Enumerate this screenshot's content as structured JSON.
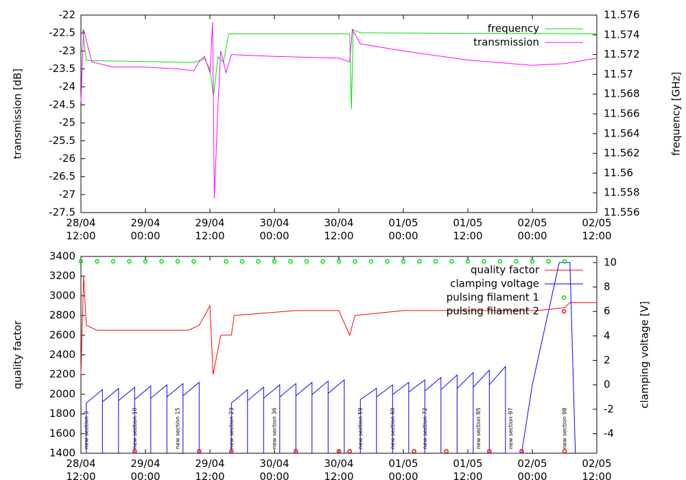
{
  "chart_data": [
    {
      "type": "line",
      "ylabel": "transmission [dB]",
      "y2label": "frequency [GHz]",
      "xlim": [
        "28/04 12:00",
        "02/05 12:00"
      ],
      "xticks": [
        {
          "value": "28/04 12:00",
          "label": "28/04\n12:00"
        },
        {
          "value": "29/04 00:00",
          "label": "29/04\n00:00"
        },
        {
          "value": "29/04 12:00",
          "label": "29/04\n12:00"
        },
        {
          "value": "30/04 00:00",
          "label": "30/04\n00:00"
        },
        {
          "value": "30/04 12:00",
          "label": "30/04\n12:00"
        },
        {
          "value": "01/05 00:00",
          "label": "01/05\n00:00"
        },
        {
          "value": "01/05 12:00",
          "label": "01/05\n12:00"
        },
        {
          "value": "02/05 00:00",
          "label": "02/05\n00:00"
        },
        {
          "value": "02/05 12:00",
          "label": "02/05\n12:00"
        }
      ],
      "ylim": [
        -27.5,
        -22
      ],
      "yticks": [
        -27.5,
        -27,
        -26.5,
        -26,
        -25.5,
        -25,
        -24.5,
        -24,
        -23.5,
        -23,
        -22.5,
        -22
      ],
      "y2lim": [
        11.556,
        11.576
      ],
      "y2ticks": [
        11.556,
        11.558,
        11.56,
        11.562,
        11.564,
        11.566,
        11.568,
        11.57,
        11.572,
        11.574,
        11.576
      ],
      "legend": "top right",
      "grid": false,
      "series": [
        {
          "name": "frequency",
          "color": "#00e000",
          "axis": "y2",
          "x": [
            "28/04 12:20",
            "28/04 13:00",
            "29/04 09:00",
            "29/04 11:00",
            "29/04 12:00",
            "29/04 12:40",
            "29/04 13:30",
            "29/04 14:30",
            "29/04 15:30",
            "30/04 14:00",
            "30/04 14:20",
            "30/04 14:40",
            "30/04 16:00",
            "02/05 12:00"
          ],
          "values": [
            11.5745,
            11.5714,
            11.5712,
            11.5716,
            11.5705,
            11.5678,
            11.5718,
            11.5712,
            11.5741,
            11.5741,
            11.5665,
            11.5745,
            11.5742,
            11.5741
          ]
        },
        {
          "name": "transmission",
          "color": "#ff00ff",
          "x": [
            "28/04 12:00",
            "28/04 12:30",
            "28/04 14:00",
            "28/04 18:00",
            "29/04 00:00",
            "29/04 06:00",
            "29/04 09:00",
            "29/04 10:00",
            "29/04 11:00",
            "29/04 12:00",
            "29/04 12:30",
            "29/04 12:50",
            "29/04 13:30",
            "29/04 14:00",
            "29/04 15:00",
            "29/04 16:00",
            "30/04 00:00",
            "30/04 12:00",
            "30/04 14:00",
            "30/04 14:30",
            "30/04 16:00",
            "01/05 00:00",
            "01/05 12:00",
            "02/05 00:00",
            "02/05 06:00",
            "02/05 12:00"
          ],
          "values": [
            -24.4,
            -22.4,
            -23.3,
            -23.45,
            -23.45,
            -23.5,
            -23.55,
            -23.3,
            -23.15,
            -23.6,
            -22.2,
            -27.1,
            -24.5,
            -23.0,
            -23.6,
            -23.1,
            -23.15,
            -23.2,
            -23.3,
            -22.4,
            -22.8,
            -23.0,
            -23.25,
            -23.4,
            -23.35,
            -23.2
          ]
        }
      ]
    },
    {
      "type": "line",
      "ylabel": "quality factor",
      "y2label": "clamping voltage [V]",
      "xlim": [
        "28/04 12:00",
        "02/05 12:00"
      ],
      "xticks": [
        {
          "value": "28/04 12:00",
          "label": "28/04\n12:00"
        },
        {
          "value": "29/04 00:00",
          "label": "29/04\n00:00"
        },
        {
          "value": "29/04 12:00",
          "label": "29/04\n12:00"
        },
        {
          "value": "30/04 00:00",
          "label": "30/04\n00:00"
        },
        {
          "value": "30/04 12:00",
          "label": "30/04\n12:00"
        },
        {
          "value": "01/05 00:00",
          "label": "01/05\n00:00"
        },
        {
          "value": "01/05 12:00",
          "label": "01/05\n12:00"
        },
        {
          "value": "02/05 00:00",
          "label": "02/05\n00:00"
        },
        {
          "value": "02/05 12:00",
          "label": "02/05\n12:00"
        }
      ],
      "ylim": [
        1400,
        3400
      ],
      "yticks": [
        1400,
        1600,
        1800,
        2000,
        2200,
        2400,
        2600,
        2800,
        3000,
        3200,
        3400
      ],
      "y2lim": [
        -5.6,
        10.5
      ],
      "y2ticks": [
        -4,
        -2,
        0,
        2,
        4,
        6,
        8,
        10
      ],
      "legend": "top right",
      "grid": false,
      "series": [
        {
          "name": "quality factor",
          "color": "#ff0000",
          "x": [
            "28/04 12:00",
            "28/04 12:30",
            "28/04 13:00",
            "28/04 15:00",
            "29/04 08:00",
            "29/04 10:00",
            "29/04 11:00",
            "29/04 12:00",
            "29/04 12:36",
            "29/04 14:00",
            "29/04 16:00",
            "29/04 16:30",
            "30/04 04:00",
            "30/04 12:00",
            "30/04 14:00",
            "30/04 15:00",
            "01/05 00:00",
            "01/05 12:00",
            "02/05 01:00",
            "02/05 06:00",
            "02/05 07:00",
            "02/05 12:00"
          ],
          "values": [
            2200,
            3200,
            2700,
            2650,
            2650,
            2700,
            2800,
            2900,
            2200,
            2600,
            2600,
            2800,
            2850,
            2850,
            2600,
            2800,
            2850,
            2850,
            2850,
            2880,
            2930,
            2930
          ]
        },
        {
          "name": "clamping voltage",
          "color": "#0000ff",
          "axis": "y2",
          "x": [
            "28/04 13:00",
            "28/04 13:00",
            "28/04 16:00",
            "28/04 16:00",
            "28/04 16:00",
            "28/04 19:00",
            "28/04 19:00",
            "28/04 19:00",
            "28/04 22:00",
            "28/04 22:00",
            "28/04 22:00",
            "29/04 01:00",
            "29/04 01:00",
            "29/04 01:00",
            "29/04 04:00",
            "29/04 04:00",
            "29/04 04:00",
            "29/04 07:00",
            "29/04 07:00",
            "29/04 07:00",
            "29/04 10:00",
            "29/04 10:00",
            null,
            "29/04 16:00",
            "29/04 16:00",
            "29/04 19:00",
            "29/04 19:00",
            "29/04 19:00",
            "29/04 22:00",
            "29/04 22:00",
            "29/04 22:00",
            "30/04 01:00",
            "30/04 01:00",
            "30/04 01:00",
            "30/04 04:00",
            "30/04 04:00",
            "30/04 04:00",
            "30/04 07:00",
            "30/04 07:00",
            "30/04 07:00",
            "30/04 10:00",
            "30/04 10:00",
            "30/04 10:00",
            "30/04 13:00",
            "30/04 13:00",
            null,
            "30/04 16:00",
            "30/04 16:00",
            "30/04 19:00",
            "30/04 19:00",
            "30/04 19:00",
            "30/04 22:00",
            "30/04 22:00",
            "30/04 22:00",
            "01/05 01:00",
            "01/05 01:00",
            "01/05 01:00",
            "01/05 04:00",
            "01/05 04:00",
            "01/05 04:00",
            "01/05 07:00",
            "01/05 07:00",
            "01/05 07:00",
            "01/05 10:00",
            "01/05 10:00",
            "01/05 10:00",
            "01/05 13:00",
            "01/05 13:00",
            "01/05 13:00",
            "01/05 16:00",
            "01/05 16:00",
            "01/05 16:00",
            "01/05 19:00",
            "01/05 19:00",
            "01/05 22:00",
            "02/05 00:00",
            "02/05 05:00",
            "02/05 07:00",
            "02/05 08:00"
          ],
          "values": [
            -5.6,
            -1.5,
            -0.4,
            -5.6,
            -1.4,
            -0.3,
            -5.6,
            -1.3,
            -0.2,
            -5.6,
            -1.2,
            -0.1,
            -5.6,
            -1.1,
            0,
            -5.6,
            -1.0,
            0.1,
            -5.6,
            -0.9,
            0.2,
            -5.6,
            null,
            -5.6,
            -1.5,
            -0.4,
            -5.6,
            -1.3,
            -0.2,
            -5.6,
            -1.1,
            0,
            -5.6,
            -1.0,
            0.1,
            -5.6,
            -0.9,
            0.2,
            -5.6,
            -0.8,
            0.3,
            -5.6,
            -0.7,
            0.4,
            -5.6,
            null,
            -5.6,
            -1.2,
            -0.3,
            -5.6,
            -1.0,
            0,
            -5.6,
            -0.8,
            0.2,
            -5.6,
            -0.6,
            0.4,
            -5.6,
            -0.5,
            0.6,
            -5.6,
            -0.4,
            0.8,
            -5.6,
            -0.3,
            1.0,
            -5.6,
            -0.2,
            1.2,
            -5.6,
            0,
            1.5,
            -5.6,
            -5.6,
            0,
            10,
            10,
            -5.6
          ]
        },
        {
          "name": "pulsing filament 1",
          "color": "#00e000",
          "style": "points",
          "x": [
            "28/04 12:00",
            "28/04 15:00",
            "28/04 18:00",
            "28/04 21:00",
            "29/04 00:00",
            "29/04 03:00",
            "29/04 06:00",
            "29/04 09:00",
            "29/04 15:00",
            "29/04 18:00",
            "29/04 21:00",
            "30/04 00:00",
            "30/04 03:00",
            "30/04 06:00",
            "30/04 09:00",
            "30/04 12:00",
            "30/04 15:00",
            "30/04 18:00",
            "30/04 21:00",
            "01/05 00:00",
            "01/05 03:00",
            "01/05 06:00",
            "01/05 09:00",
            "01/05 12:00",
            "01/05 15:00",
            "01/05 18:00",
            "01/05 21:00",
            "02/05 00:00",
            "02/05 03:00",
            "02/05 06:00"
          ],
          "values": [
            3350,
            3350,
            3350,
            3350,
            3350,
            3350,
            3350,
            3350,
            3350,
            3350,
            3350,
            3350,
            3350,
            3350,
            3350,
            3350,
            3350,
            3350,
            3350,
            3350,
            3350,
            3350,
            3350,
            3350,
            3350,
            3350,
            3350,
            3350,
            3350,
            3350
          ]
        },
        {
          "name": "pulsing filament 2",
          "color": "#ff0000",
          "style": "points",
          "x": [
            "28/04 22:00",
            "29/04 10:00",
            "29/04 16:00",
            "30/04 04:00",
            "30/04 12:00",
            "30/04 14:00",
            "01/05 02:00",
            "01/05 08:00",
            "01/05 16:00",
            "01/05 22:00",
            "02/05 06:00"
          ],
          "values": [
            1420,
            1420,
            1420,
            1420,
            1420,
            1420,
            1420,
            1420,
            1420,
            1420,
            1420
          ]
        }
      ],
      "annotations": [
        {
          "text": "new section 3",
          "x": "28/04 13:00"
        },
        {
          "text": "new section 10",
          "x": "28/04 22:00"
        },
        {
          "text": "new section 15",
          "x": "29/04 06:00"
        },
        {
          "text": "new section 23",
          "x": "29/04 16:00"
        },
        {
          "text": "new section 36",
          "x": "30/04 00:00"
        },
        {
          "text": "new section 59",
          "x": "30/04 16:00"
        },
        {
          "text": "new section 60",
          "x": "30/04 22:00"
        },
        {
          "text": "new section 72",
          "x": "01/05 04:00"
        },
        {
          "text": "new section 85",
          "x": "01/05 14:00"
        },
        {
          "text": "new section 97",
          "x": "01/05 20:00"
        },
        {
          "text": "new section 98",
          "x": "02/05 06:00"
        }
      ]
    }
  ]
}
